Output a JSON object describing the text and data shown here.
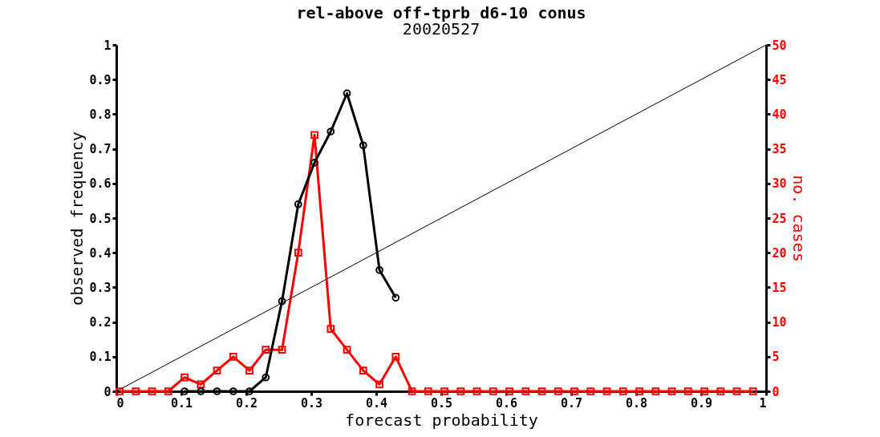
{
  "chart_data": {
    "type": "line",
    "title": "rel-above off-tprb d6-10 conus",
    "subtitle": "20020527",
    "xlabel": "forecast probability",
    "ylabel": "observed frequency",
    "y2label": "no. cases",
    "xlim": [
      0,
      1
    ],
    "xticks": [
      0,
      0.1,
      0.2,
      0.3,
      0.4,
      0.5,
      0.6,
      0.7,
      0.8,
      0.9,
      1
    ],
    "ylim": [
      0,
      1
    ],
    "yticks": [
      0,
      0.1,
      0.2,
      0.3,
      0.4,
      0.5,
      0.6,
      0.7,
      0.8,
      0.9,
      1
    ],
    "y2lim": [
      0,
      50
    ],
    "y2ticks": [
      0,
      5,
      10,
      15,
      20,
      25,
      30,
      35,
      40,
      45,
      50
    ],
    "grid": false,
    "legend": false,
    "series": [
      {
        "color": "#000000",
        "marker": "none",
        "x": [
          0,
          1
        ],
        "values": [
          0,
          1
        ]
      },
      {
        "color": "#000000",
        "marker": "circle",
        "x": [
          0.105,
          0.13,
          0.155,
          0.18,
          0.205,
          0.23,
          0.255,
          0.28,
          0.305,
          0.33,
          0.355,
          0.38,
          0.405,
          0.43
        ],
        "values": [
          0,
          0,
          0,
          0,
          0,
          0.04,
          0.26,
          0.54,
          0.66,
          0.75,
          0.86,
          0.71,
          0.35,
          0.27
        ]
      },
      {
        "axis": "y2",
        "color": "#ff0000",
        "marker": "square",
        "x": [
          0.005,
          0.03,
          0.055,
          0.08,
          0.105,
          0.13,
          0.155,
          0.18,
          0.205,
          0.23,
          0.255,
          0.28,
          0.305,
          0.33,
          0.355,
          0.38,
          0.405,
          0.43,
          0.455,
          0.48,
          0.505,
          0.53,
          0.555,
          0.58,
          0.605,
          0.63,
          0.655,
          0.68,
          0.705,
          0.73,
          0.755,
          0.78,
          0.805,
          0.83,
          0.855,
          0.88,
          0.905,
          0.93,
          0.955,
          0.98
        ],
        "values": [
          0,
          0,
          0,
          0,
          2,
          1,
          3,
          5,
          3,
          6,
          6,
          20,
          37,
          9,
          6,
          3,
          1,
          5,
          0,
          0,
          0,
          0,
          0,
          0,
          0,
          0,
          0,
          0,
          0,
          0,
          0,
          0,
          0,
          0,
          0,
          0,
          0,
          0,
          0,
          0
        ]
      }
    ]
  }
}
